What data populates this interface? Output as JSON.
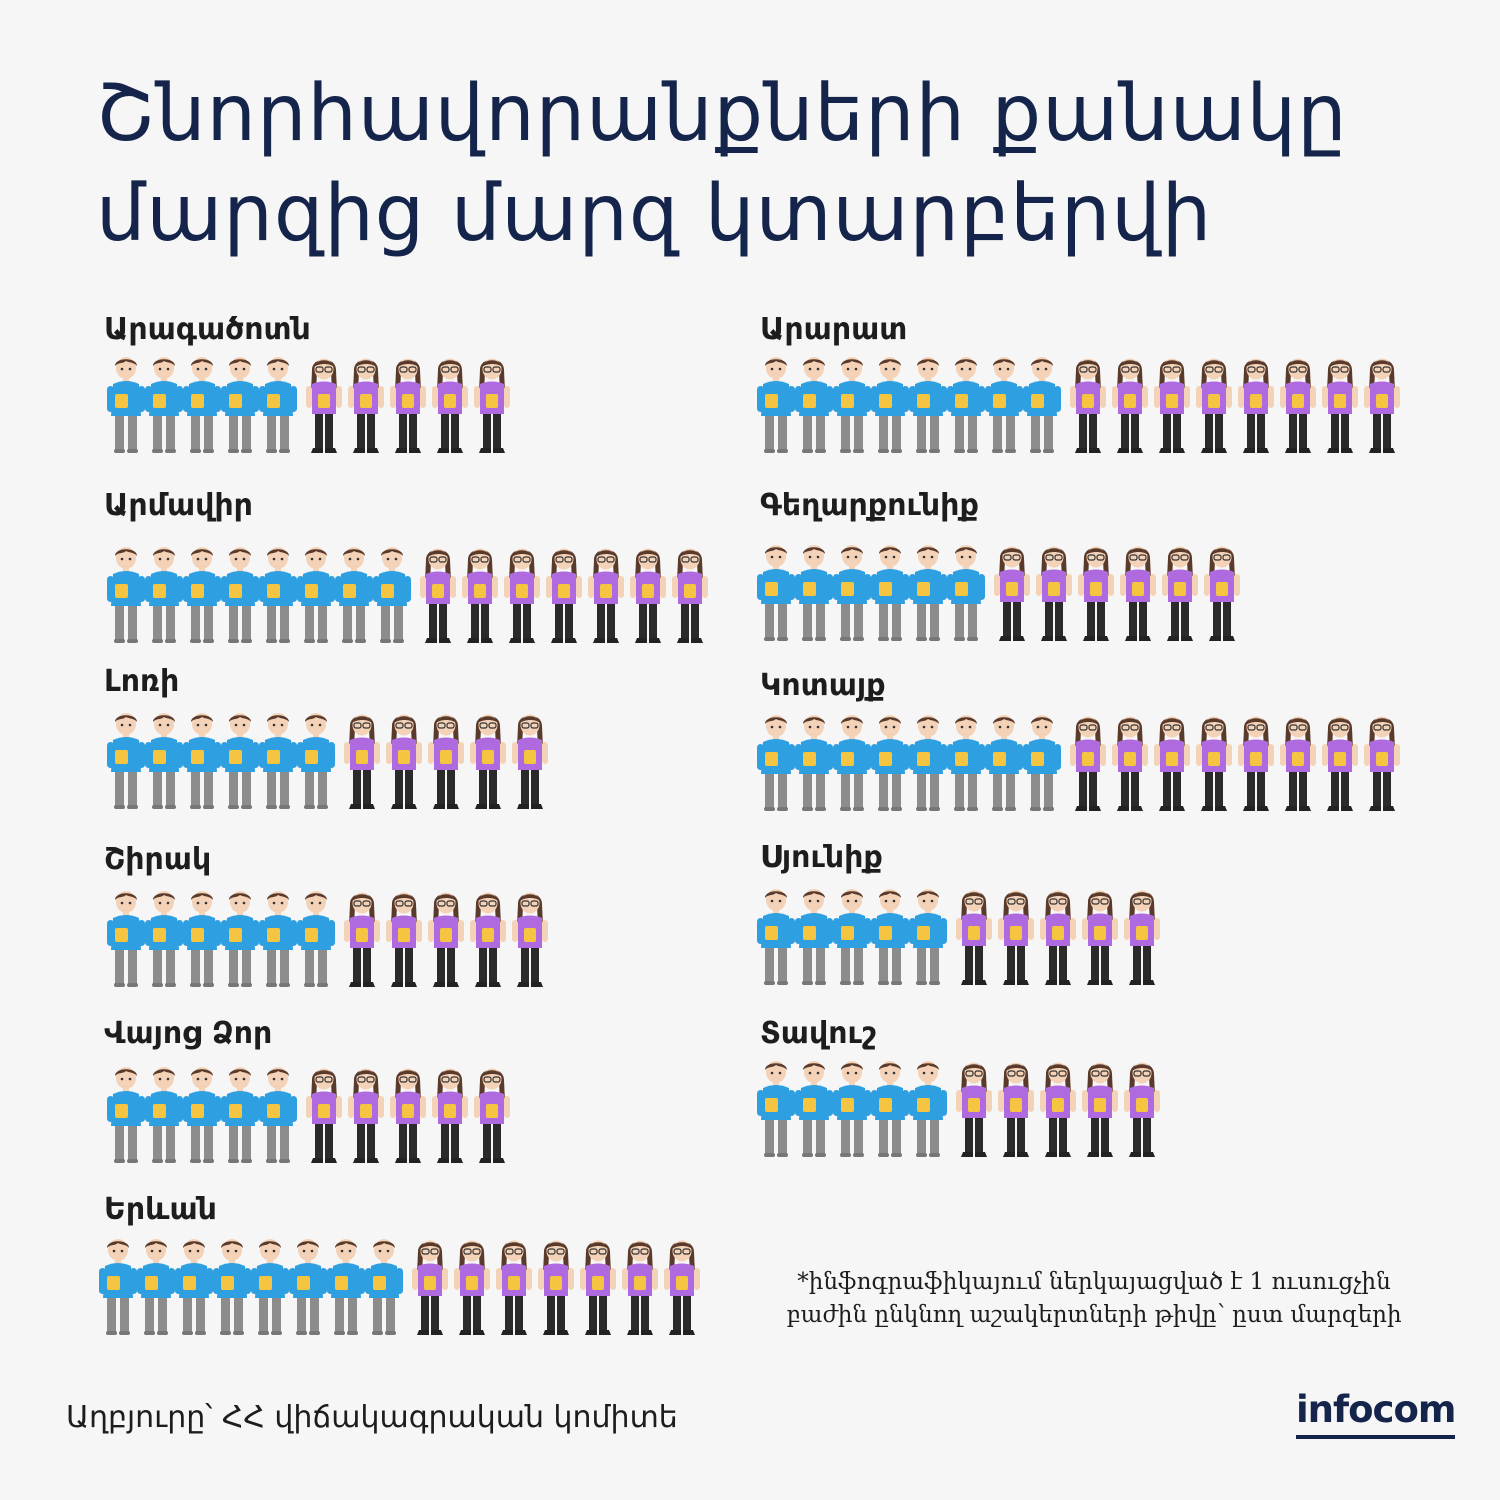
{
  "title": {
    "line1": "Շնորհավորանքների քանակը",
    "line2": "մարզից մարզ կտարբերվի"
  },
  "colors": {
    "title": "#14244a",
    "boy_shirt": "#2e9fe0",
    "boy_pants": "#8c8c8c",
    "girl_shirt": "#b06ae0",
    "girl_pants": "#2a2a2a",
    "book": "#f5c542",
    "hair": "#5a3a2a"
  },
  "chart_data": {
    "type": "pictogram",
    "unit": "student",
    "series": [
      {
        "name": "boys",
        "icon": "boy-student-icon"
      },
      {
        "name": "girls",
        "icon": "girl-student-icon"
      }
    ],
    "regions": [
      {
        "name": "Արագածոտն",
        "boys": 5,
        "girls": 5
      },
      {
        "name": "Արարատ",
        "boys": 8,
        "girls": 8
      },
      {
        "name": "Արմավիր",
        "boys": 8,
        "girls": 7
      },
      {
        "name": "Գեղարքունիք",
        "boys": 6,
        "girls": 6
      },
      {
        "name": "Լոռի",
        "boys": 6,
        "girls": 5
      },
      {
        "name": "Կոտայք",
        "boys": 8,
        "girls": 8
      },
      {
        "name": "Շիրակ",
        "boys": 6,
        "girls": 5
      },
      {
        "name": "Սյունիք",
        "boys": 5,
        "girls": 5
      },
      {
        "name": "Վայոց Ձոր",
        "boys": 5,
        "girls": 5
      },
      {
        "name": "Տավուշ",
        "boys": 5,
        "girls": 5
      },
      {
        "name": "Երևան",
        "boys": 8,
        "girls": 7
      }
    ]
  },
  "footnote": {
    "line1": "*ինֆոգրաֆիկայում ներկայացված է 1 ուսուցչին",
    "line2": "բաժին ընկնող աշակերտների թիվը՝ ըստ մարզերի"
  },
  "source": "Աղբյուրը՝ ՀՀ վիճակագրական կոմիտե",
  "logo": "infocom"
}
